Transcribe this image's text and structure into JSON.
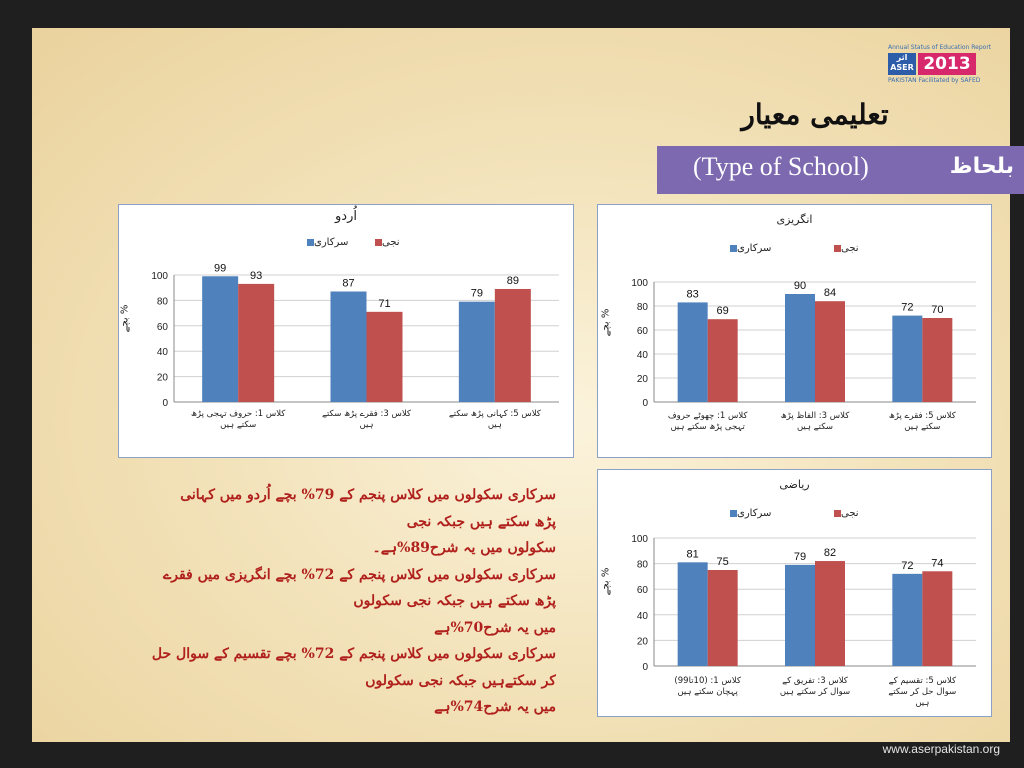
{
  "logo": {
    "top_text": "Annual Status of Education Report",
    "aser": "ASER",
    "aser_urdu": "اثر",
    "country": "PAKISTAN",
    "year": "2013",
    "sub": "Facilitated by SAFED"
  },
  "title": "تعلیمی معیار",
  "banner": {
    "english": "(Type of School)",
    "urdu": "بلحاظ"
  },
  "legend": {
    "govt": "سرکاری",
    "private": "نجی"
  },
  "colors": {
    "govt": "#4f81bd",
    "private": "#c0504d"
  },
  "chart_data": [
    {
      "type": "bar",
      "title": "اُردو",
      "ylabel": "بچے %",
      "ylim": [
        0,
        100
      ],
      "yticks": [
        0,
        20,
        40,
        60,
        80,
        100
      ],
      "categories": [
        "کلاس 1: حروف تہجی پڑھ سکتے ہیں",
        "کلاس 3: فقرے پڑھ سکتے ہیں",
        "کلاس 5: کہانی پڑھ سکتے ہیں"
      ],
      "series": [
        {
          "name": "سرکاری",
          "values": [
            99,
            87,
            79
          ]
        },
        {
          "name": "نجی",
          "values": [
            93,
            71,
            89
          ]
        }
      ]
    },
    {
      "type": "bar",
      "title": "انگریزی",
      "ylabel": "بچے %",
      "ylim": [
        0,
        100
      ],
      "yticks": [
        0,
        20,
        40,
        60,
        80,
        100
      ],
      "categories": [
        "کلاس 1: چھوٹے حروف تہجی پڑھ سکتے ہیں",
        "کلاس 3: الفاظ پڑھ سکتے ہیں",
        "کلاس 5: فقرے پڑھ سکتے ہیں"
      ],
      "series": [
        {
          "name": "سرکاری",
          "values": [
            83,
            90,
            72
          ]
        },
        {
          "name": "نجی",
          "values": [
            69,
            84,
            70
          ]
        }
      ]
    },
    {
      "type": "bar",
      "title": "ریاضی",
      "ylabel": "بچے %",
      "ylim": [
        0,
        100
      ],
      "yticks": [
        0,
        20,
        40,
        60,
        80,
        100
      ],
      "categories": [
        "کلاس 1: (10تا99) پہچان سکتے ہیں",
        "کلاس 3: تفریق کے سوال کر سکتے ہیں",
        "کلاس 5: تقسیم کے سوال حل کر سکتے ہیں"
      ],
      "series": [
        {
          "name": "سرکاری",
          "values": [
            81,
            79,
            72
          ]
        },
        {
          "name": "نجی",
          "values": [
            75,
            82,
            74
          ]
        }
      ]
    }
  ],
  "summary_lines": [
    "سرکاری سکولوں میں کلاس پنجم کے 79% بچے اُردو میں کہانی",
    "پڑھ سکتے ہیں جبکہ نجی",
    "سکولوں میں یہ شرح89%ہے۔",
    "سرکاری سکولوں میں کلاس پنجم کے 72% بچے انگریزی میں فقرے",
    "پڑھ سکتے ہیں جبکہ نجی سکولوں",
    "میں یہ شرح70%ہے",
    "سرکاری سکولوں میں کلاس پنجم کے 72% بچے تقسیم کے سوال حل",
    "کر سکتےہیں جبکہ نجی سکولوں",
    "میں یہ شرح74%ہے"
  ],
  "footer": "www.aserpakistan.org"
}
